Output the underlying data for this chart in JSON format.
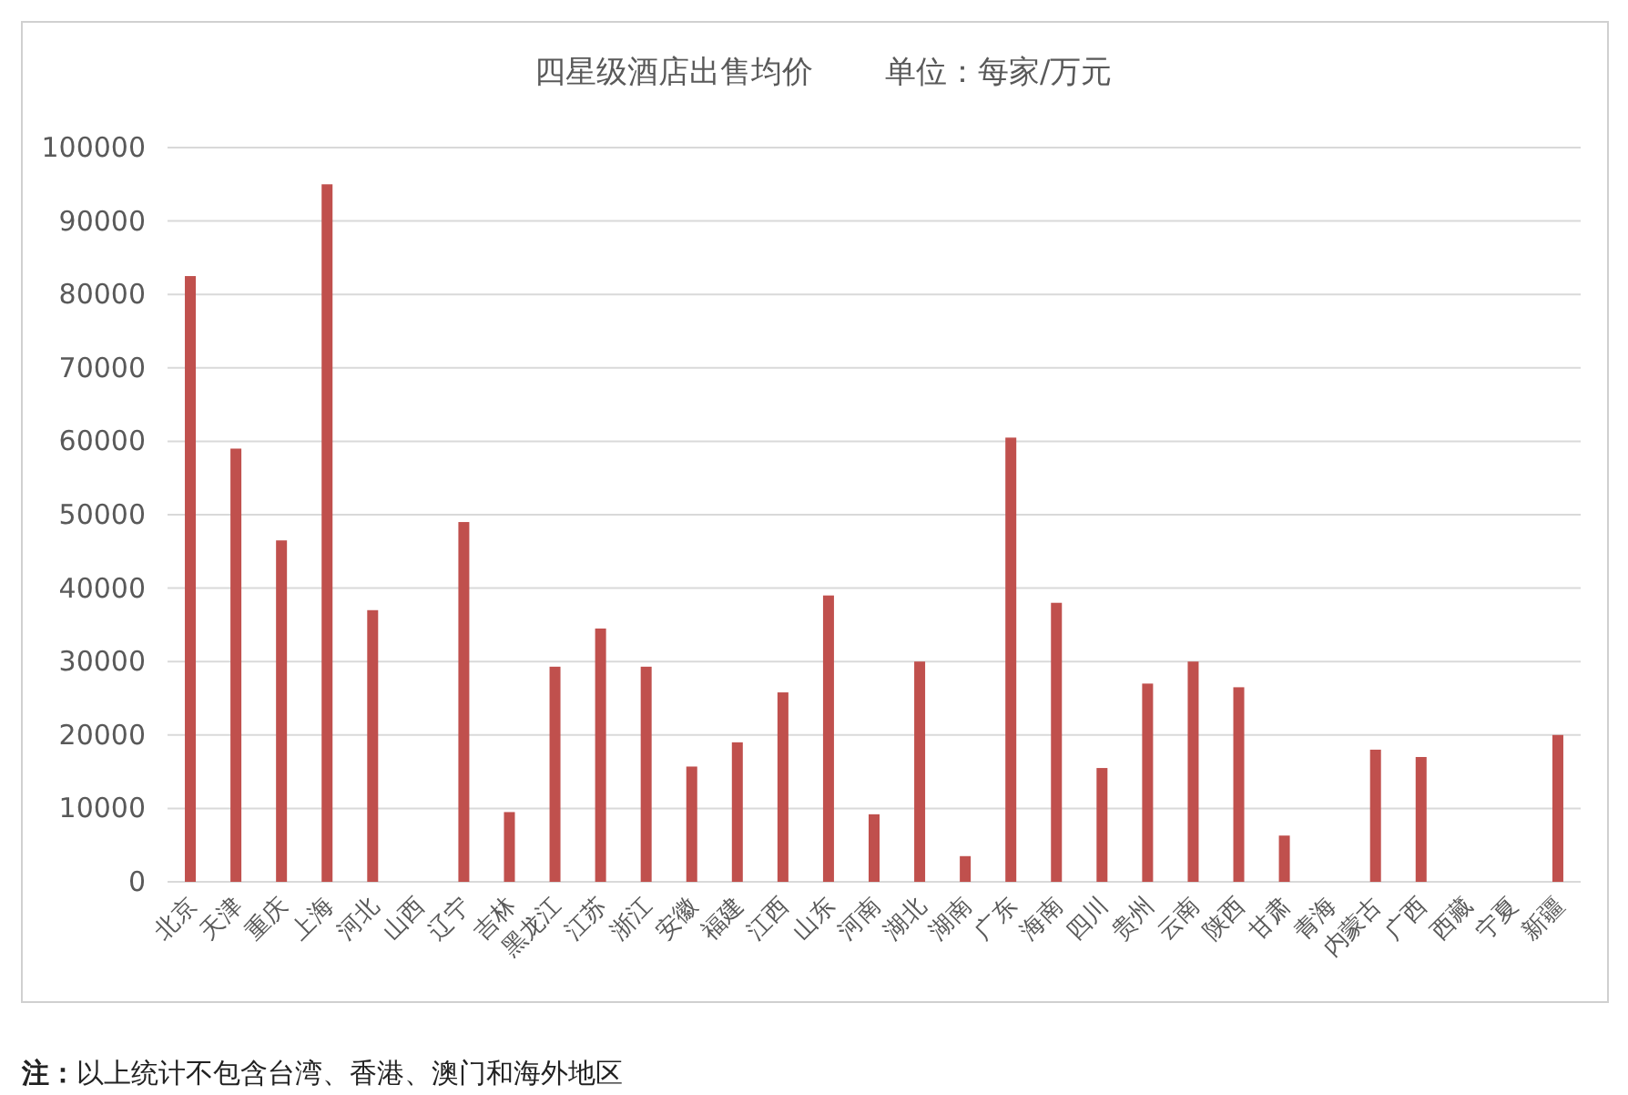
{
  "chart_data": {
    "type": "bar",
    "title": "四星级酒店出售均价",
    "subtitle": "单位：每家/万元",
    "categories": [
      "北京",
      "天津",
      "重庆",
      "上海",
      "河北",
      "山西",
      "辽宁",
      "吉林",
      "黑龙江",
      "江苏",
      "浙江",
      "安徽",
      "福建",
      "江西",
      "山东",
      "河南",
      "湖北",
      "湖南",
      "广东",
      "海南",
      "四川",
      "贵州",
      "云南",
      "陕西",
      "甘肃",
      "青海",
      "内蒙古",
      "广西",
      "西藏",
      "宁夏",
      "新疆"
    ],
    "values": [
      82500,
      59000,
      46500,
      95000,
      37000,
      null,
      49000,
      9500,
      29300,
      34500,
      29300,
      15700,
      19000,
      25800,
      39000,
      9200,
      30000,
      3500,
      60500,
      38000,
      15500,
      27000,
      30000,
      26500,
      6300,
      null,
      18000,
      17000,
      null,
      null,
      20000
    ],
    "color": "#c0504d",
    "ylim": [
      0,
      100000
    ],
    "yticks": [
      0,
      10000,
      20000,
      30000,
      40000,
      50000,
      60000,
      70000,
      80000,
      90000,
      100000
    ],
    "grid": "y",
    "annotations": [
      "**注：**以上统计不包含台湾、香港、澳门和海外地区"
    ]
  }
}
